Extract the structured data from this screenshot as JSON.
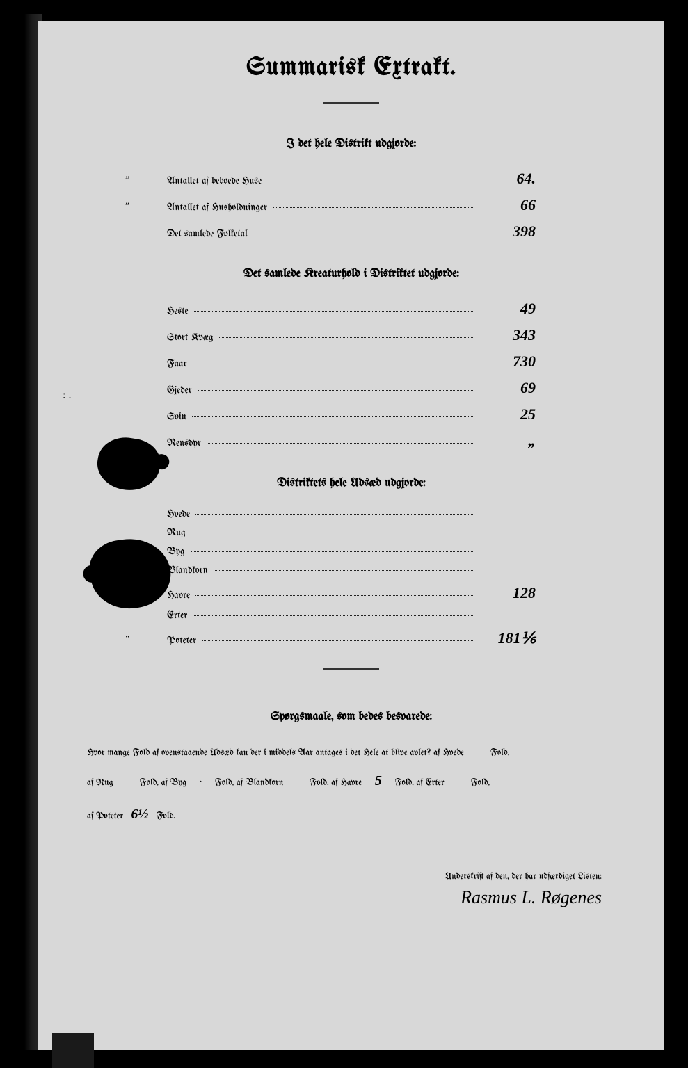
{
  "title": "Summarisk Extrakt.",
  "section1": {
    "heading": "I det hele Distrikt udgjorde:",
    "rows": [
      {
        "prefix": "„",
        "label": "Antallet af beboede Huse",
        "value": "64."
      },
      {
        "prefix": "„",
        "label": "Antallet af Husholdninger",
        "value": "66"
      },
      {
        "prefix": "",
        "label": "Det samlede Folketal",
        "value": "398"
      }
    ]
  },
  "section2": {
    "heading": "Det samlede Kreaturhold i Distriktet udgjorde:",
    "rows": [
      {
        "label": "Heste",
        "value": "49"
      },
      {
        "label": "Stort Kvæg",
        "value": "343"
      },
      {
        "label": "Faar",
        "value": "730"
      },
      {
        "label": "Gjeder",
        "value": "69"
      },
      {
        "label": "Svin",
        "value": "25"
      },
      {
        "label": "Rensdyr",
        "value": "„"
      }
    ]
  },
  "section3": {
    "heading": "Distriktets hele Udsæd udgjorde:",
    "rows": [
      {
        "prefix": "",
        "label": "Hvede",
        "value": ""
      },
      {
        "prefix": "",
        "label": "Rug",
        "value": ""
      },
      {
        "prefix": "„",
        "label": "Byg",
        "value": ""
      },
      {
        "prefix": "„",
        "label": "Blandkorn",
        "value": ""
      },
      {
        "prefix": "„",
        "label": "Havre",
        "value": "128"
      },
      {
        "prefix": "",
        "label": "Erter",
        "value": ""
      },
      {
        "prefix": "„",
        "label": "Poteter",
        "value": "181⅙"
      }
    ]
  },
  "questions": {
    "heading": "Spørgsmaale, som bedes besvarede:",
    "text_parts": {
      "p1": "Hvor mange Fold af ovenstaaende Udsæd kan der i middels Aar antages i det Hele at blive avlet? af Hvede",
      "p2": "Fold,",
      "p3": "af Rug",
      "p4": "Fold, af Byg",
      "p5": "Fold, af Blandkorn",
      "p6": "Fold, af Havre",
      "p7": "Fold, af Erter",
      "p8": "Fold,",
      "p9": "af Poteter",
      "p10": "Fold.",
      "havre_val": "5",
      "poteter_val": "6½"
    }
  },
  "signature": {
    "label": "Underskrift af den, der har udfærdiget Listen:",
    "name": "Rasmus L. Røgenes"
  },
  "colors": {
    "page_bg": "#d8d8d8",
    "text": "#111111",
    "frame": "#000000"
  }
}
